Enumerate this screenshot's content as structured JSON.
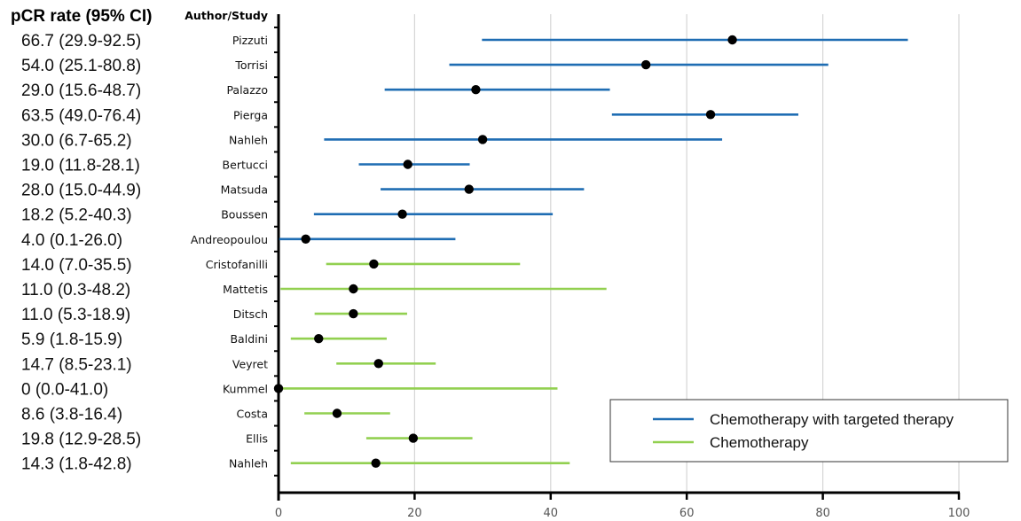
{
  "chart_data": {
    "type": "forest",
    "left_header": "pCR rate (95% CI)",
    "study_header": "Author/Study",
    "xlim": [
      0,
      100
    ],
    "x_ticks": [
      "0",
      "20",
      "40",
      "60",
      "80",
      "100"
    ],
    "x_tick_values": [
      0,
      20,
      40,
      60,
      80,
      100
    ],
    "grid": true,
    "legend_position": "bottom-right",
    "series": [
      {
        "name": "Chemotherapy with targeted therapy",
        "color": "#1f6db3"
      },
      {
        "name": "Chemotherapy",
        "color": "#92d050"
      }
    ],
    "studies": [
      {
        "study": "Pizzuti",
        "ci_text": "66.7 (29.9-92.5)",
        "value": 66.7,
        "low": 29.9,
        "high": 92.5,
        "series": 0
      },
      {
        "study": "Torrisi",
        "ci_text": "54.0 (25.1-80.8)",
        "value": 54.0,
        "low": 25.1,
        "high": 80.8,
        "series": 0
      },
      {
        "study": "Palazzo",
        "ci_text": "29.0 (15.6-48.7)",
        "value": 29.0,
        "low": 15.6,
        "high": 48.7,
        "series": 0
      },
      {
        "study": "Pierga",
        "ci_text": "63.5 (49.0-76.4)",
        "value": 63.5,
        "low": 49.0,
        "high": 76.4,
        "series": 0
      },
      {
        "study": "Nahleh",
        "ci_text": "30.0 (6.7-65.2)",
        "value": 30.0,
        "low": 6.7,
        "high": 65.2,
        "series": 0
      },
      {
        "study": "Bertucci",
        "ci_text": "19.0 (11.8-28.1)",
        "value": 19.0,
        "low": 11.8,
        "high": 28.1,
        "series": 0
      },
      {
        "study": "Matsuda",
        "ci_text": "28.0 (15.0-44.9)",
        "value": 28.0,
        "low": 15.0,
        "high": 44.9,
        "series": 0
      },
      {
        "study": "Boussen",
        "ci_text": "18.2 (5.2-40.3)",
        "value": 18.2,
        "low": 5.2,
        "high": 40.3,
        "series": 0
      },
      {
        "study": "Andreopoulou",
        "ci_text": "4.0 (0.1-26.0)",
        "value": 4.0,
        "low": 0.1,
        "high": 26.0,
        "series": 0
      },
      {
        "study": "Cristofanilli",
        "ci_text": "14.0 (7.0-35.5)",
        "value": 14.0,
        "low": 7.0,
        "high": 35.5,
        "series": 1
      },
      {
        "study": "Mattetis",
        "ci_text": "11.0 (0.3-48.2)",
        "value": 11.0,
        "low": 0.3,
        "high": 48.2,
        "series": 1
      },
      {
        "study": "Ditsch",
        "ci_text": "11.0 (5.3-18.9)",
        "value": 11.0,
        "low": 5.3,
        "high": 18.9,
        "series": 1
      },
      {
        "study": "Baldini",
        "ci_text": "5.9 (1.8-15.9)",
        "value": 5.9,
        "low": 1.8,
        "high": 15.9,
        "series": 1
      },
      {
        "study": "Veyret",
        "ci_text": "14.7 (8.5-23.1)",
        "value": 14.7,
        "low": 8.5,
        "high": 23.1,
        "series": 1
      },
      {
        "study": "Kummel",
        "ci_text": "0 (0.0-41.0)",
        "value": 0,
        "low": 0.0,
        "high": 41.0,
        "series": 1
      },
      {
        "study": "Costa",
        "ci_text": "8.6 (3.8-16.4)",
        "value": 8.6,
        "low": 3.8,
        "high": 16.4,
        "series": 1
      },
      {
        "study": "Ellis",
        "ci_text": "19.8 (12.9-28.5)",
        "value": 19.8,
        "low": 12.9,
        "high": 28.5,
        "series": 1
      },
      {
        "study": "Nahleh",
        "ci_text": "14.3 (1.8-42.8)",
        "value": 14.3,
        "low": 1.8,
        "high": 42.8,
        "series": 1
      }
    ]
  }
}
